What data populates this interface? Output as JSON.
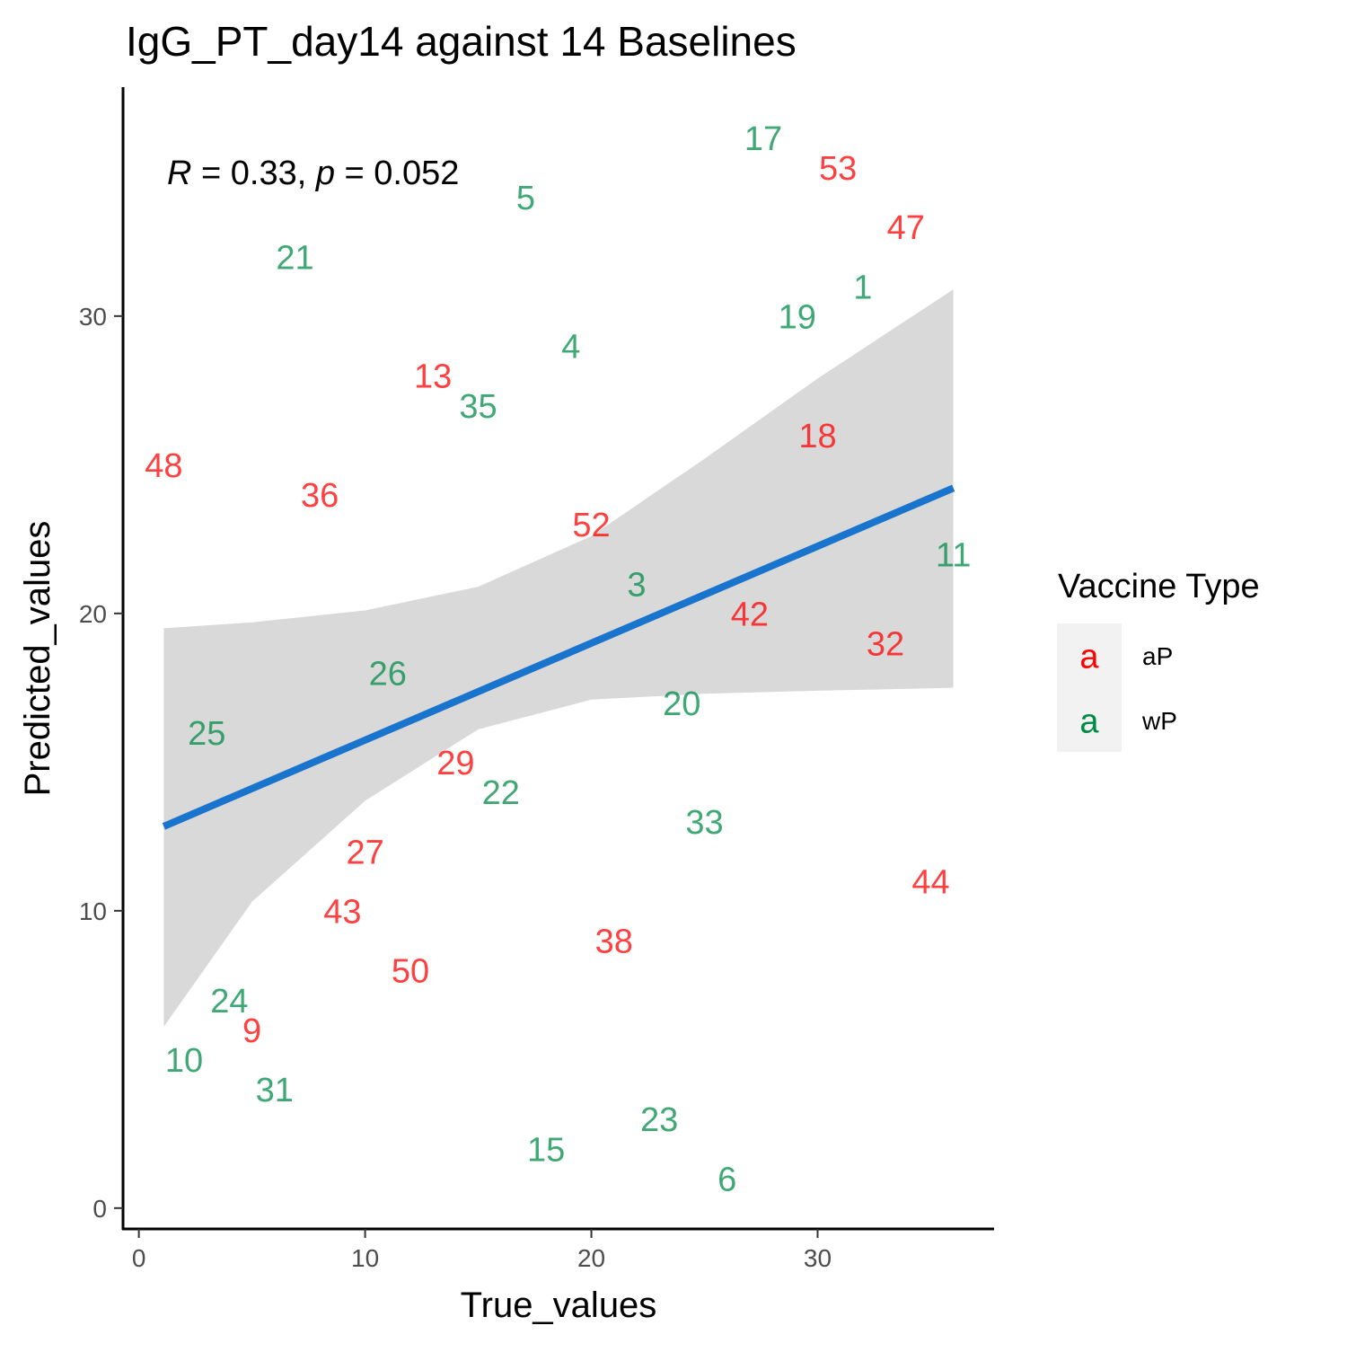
{
  "chart_data": {
    "type": "scatter",
    "title": "IgG_PT_day14 against 14 Baselines",
    "xlabel": "True_values",
    "ylabel": "Predicted_values",
    "xlim": [
      -0.7,
      37.8
    ],
    "ylim": [
      -0.7,
      37.7
    ],
    "xticks": [
      0,
      10,
      20,
      30
    ],
    "yticks": [
      0,
      10,
      20,
      30
    ],
    "grid": false,
    "annotation": {
      "r_symbol": "R",
      "r_text": " = 0.33, ",
      "p_symbol": "p",
      "p_text": " = 0.052"
    },
    "legend": {
      "title": "Vaccine Type",
      "position": "right",
      "key_glyph": "a",
      "entries": [
        {
          "label": "aP",
          "color": "#ff0000"
        },
        {
          "label": "wP",
          "color": "#008B45"
        }
      ]
    },
    "points": [
      {
        "label": "17",
        "x": 27.6,
        "y": 36.0,
        "group": "wP"
      },
      {
        "label": "53",
        "x": 30.9,
        "y": 35.0,
        "group": "aP"
      },
      {
        "label": "5",
        "x": 17.1,
        "y": 34.0,
        "group": "wP"
      },
      {
        "label": "47",
        "x": 33.9,
        "y": 33.0,
        "group": "aP"
      },
      {
        "label": "21",
        "x": 6.9,
        "y": 32.0,
        "group": "wP"
      },
      {
        "label": "1",
        "x": 32.0,
        "y": 31.0,
        "group": "wP"
      },
      {
        "label": "19",
        "x": 29.1,
        "y": 30.0,
        "group": "wP"
      },
      {
        "label": "4",
        "x": 19.1,
        "y": 29.0,
        "group": "wP"
      },
      {
        "label": "13",
        "x": 13.0,
        "y": 28.0,
        "group": "aP"
      },
      {
        "label": "35",
        "x": 15.0,
        "y": 27.0,
        "group": "wP"
      },
      {
        "label": "18",
        "x": 30.0,
        "y": 26.0,
        "group": "aP"
      },
      {
        "label": "48",
        "x": 1.1,
        "y": 25.0,
        "group": "aP"
      },
      {
        "label": "36",
        "x": 8.0,
        "y": 24.0,
        "group": "aP"
      },
      {
        "label": "52",
        "x": 20.0,
        "y": 23.0,
        "group": "aP"
      },
      {
        "label": "11",
        "x": 36.0,
        "y": 22.0,
        "group": "wP"
      },
      {
        "label": "3",
        "x": 22.0,
        "y": 21.0,
        "group": "wP"
      },
      {
        "label": "42",
        "x": 27.0,
        "y": 20.0,
        "group": "aP"
      },
      {
        "label": "32",
        "x": 33.0,
        "y": 19.0,
        "group": "aP"
      },
      {
        "label": "26",
        "x": 11.0,
        "y": 18.0,
        "group": "wP"
      },
      {
        "label": "20",
        "x": 24.0,
        "y": 17.0,
        "group": "wP"
      },
      {
        "label": "25",
        "x": 3.0,
        "y": 16.0,
        "group": "wP"
      },
      {
        "label": "29",
        "x": 14.0,
        "y": 15.0,
        "group": "aP"
      },
      {
        "label": "22",
        "x": 16.0,
        "y": 14.0,
        "group": "wP"
      },
      {
        "label": "33",
        "x": 25.0,
        "y": 13.0,
        "group": "wP"
      },
      {
        "label": "27",
        "x": 10.0,
        "y": 12.0,
        "group": "aP"
      },
      {
        "label": "44",
        "x": 35.0,
        "y": 11.0,
        "group": "aP"
      },
      {
        "label": "43",
        "x": 9.0,
        "y": 10.0,
        "group": "aP"
      },
      {
        "label": "38",
        "x": 21.0,
        "y": 9.0,
        "group": "aP"
      },
      {
        "label": "50",
        "x": 12.0,
        "y": 8.0,
        "group": "aP"
      },
      {
        "label": "24",
        "x": 4.0,
        "y": 7.0,
        "group": "wP"
      },
      {
        "label": "9",
        "x": 5.0,
        "y": 6.0,
        "group": "aP"
      },
      {
        "label": "10",
        "x": 2.0,
        "y": 5.0,
        "group": "wP"
      },
      {
        "label": "31",
        "x": 6.0,
        "y": 4.0,
        "group": "wP"
      },
      {
        "label": "23",
        "x": 23.0,
        "y": 3.0,
        "group": "wP"
      },
      {
        "label": "15",
        "x": 18.0,
        "y": 2.0,
        "group": "wP"
      },
      {
        "label": "6",
        "x": 26.0,
        "y": 1.0,
        "group": "wP"
      }
    ],
    "fit": {
      "x_range": [
        1.1,
        36.0
      ],
      "intercept": 12.48,
      "slope": 0.326,
      "ci_band": [
        {
          "x": 1.1,
          "lower": 6.1,
          "upper": 19.5
        },
        {
          "x": 5.0,
          "lower": 10.3,
          "upper": 19.7
        },
        {
          "x": 10.0,
          "lower": 13.7,
          "upper": 20.1
        },
        {
          "x": 15.0,
          "lower": 16.1,
          "upper": 20.9
        },
        {
          "x": 20.0,
          "lower": 17.1,
          "upper": 22.6
        },
        {
          "x": 25.0,
          "lower": 17.3,
          "upper": 25.2
        },
        {
          "x": 30.0,
          "lower": 17.4,
          "upper": 27.9
        },
        {
          "x": 36.0,
          "lower": 17.5,
          "upper": 30.9
        }
      ],
      "line_color": "#1874CD",
      "band_color": "#d9d9d9"
    }
  }
}
